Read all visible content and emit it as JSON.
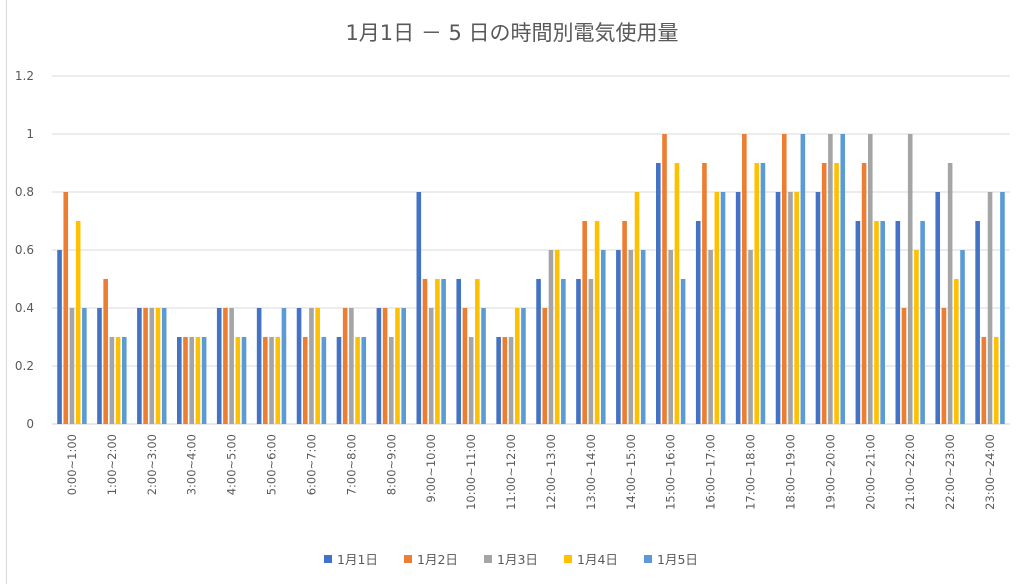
{
  "chart_data": {
    "type": "bar",
    "title": "1月1日 － 5 日の時間別電気使用量",
    "xlabel": "",
    "ylabel": "",
    "ylim": [
      0,
      1.2
    ],
    "yticks": [
      "0",
      "0.2",
      "0.4",
      "0.6",
      "0.8",
      "1",
      "1.2"
    ],
    "ytick_values": [
      0,
      0.2,
      0.4,
      0.6,
      0.8,
      1.0,
      1.2
    ],
    "grid": true,
    "legend_position": "bottom",
    "categories": [
      "0:00~1:00",
      "1:00~2:00",
      "2:00~3:00",
      "3:00~4:00",
      "4:00~5:00",
      "5:00~6:00",
      "6:00~7:00",
      "7:00~8:00",
      "8:00~9:00",
      "9:00~10:00",
      "10:00~11:00",
      "11:00~12:00",
      "12:00~13:00",
      "13:00~14:00",
      "14:00~15:00",
      "15:00~16:00",
      "16:00~17:00",
      "17:00~18:00",
      "18:00~19:00",
      "19:00~20:00",
      "20:00~21:00",
      "21:00~22:00",
      "22:00~23:00",
      "23:00~24:00"
    ],
    "series": [
      {
        "name": "1月1日",
        "color": "#4472C4",
        "values": [
          0.6,
          0.4,
          0.4,
          0.3,
          0.4,
          0.4,
          0.4,
          0.3,
          0.4,
          0.8,
          0.5,
          0.3,
          0.5,
          0.5,
          0.6,
          0.9,
          0.7,
          0.8,
          0.8,
          0.8,
          0.7,
          0.7,
          0.8,
          0.7
        ]
      },
      {
        "name": "1月2日",
        "color": "#ED7D31",
        "values": [
          0.8,
          0.5,
          0.4,
          0.3,
          0.4,
          0.3,
          0.3,
          0.4,
          0.4,
          0.5,
          0.4,
          0.3,
          0.4,
          0.7,
          0.7,
          1.0,
          0.9,
          1.0,
          1.0,
          0.9,
          0.9,
          0.4,
          0.4,
          0.3
        ]
      },
      {
        "name": "1月3日",
        "color": "#A5A5A5",
        "values": [
          0.4,
          0.3,
          0.4,
          0.3,
          0.4,
          0.3,
          0.4,
          0.4,
          0.3,
          0.4,
          0.3,
          0.3,
          0.6,
          0.5,
          0.6,
          0.6,
          0.6,
          0.6,
          0.8,
          1.0,
          1.0,
          1.0,
          0.9,
          0.8
        ]
      },
      {
        "name": "1月4日",
        "color": "#FFC000",
        "values": [
          0.7,
          0.3,
          0.4,
          0.3,
          0.3,
          0.3,
          0.4,
          0.3,
          0.4,
          0.5,
          0.5,
          0.4,
          0.6,
          0.7,
          0.8,
          0.9,
          0.8,
          0.9,
          0.8,
          0.9,
          0.7,
          0.6,
          0.5,
          0.3
        ]
      },
      {
        "name": "1月5日",
        "color": "#5B9BD5",
        "values": [
          0.4,
          0.3,
          0.4,
          0.3,
          0.3,
          0.4,
          0.3,
          0.3,
          0.4,
          0.5,
          0.4,
          0.4,
          0.5,
          0.6,
          0.6,
          0.5,
          0.8,
          0.9,
          1.0,
          1.0,
          0.7,
          0.7,
          0.6,
          0.8
        ]
      }
    ]
  }
}
